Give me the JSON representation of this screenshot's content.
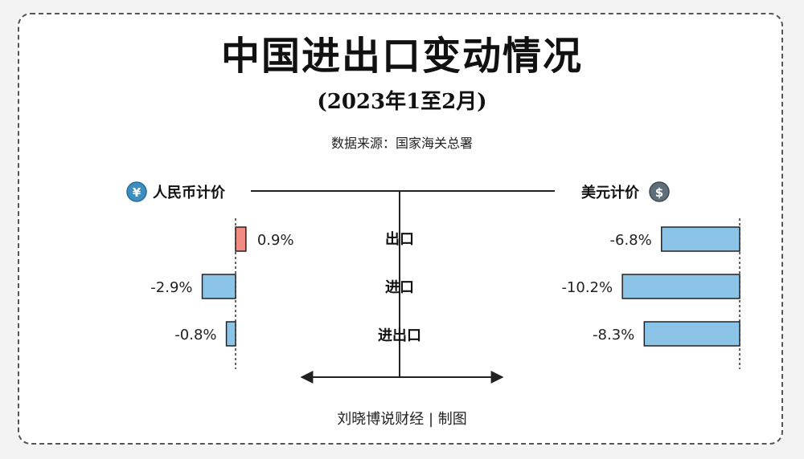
{
  "title": "中国进出口变动情况",
  "subtitle": "(2023年1至2月)",
  "source": "数据来源：国家海关总署",
  "credit": "刘晓博说财经 | 制图",
  "colors": {
    "positive": "#f28b82",
    "negative": "#8cc4e8",
    "stroke": "#222222",
    "icon_blue": "#3c8fc0",
    "icon_gray": "#5f6f7a"
  },
  "icons": {
    "left": "yuan-coin-icon",
    "right": "dollar-coin-icon"
  },
  "chart_data": {
    "type": "bar",
    "categories": [
      "出口",
      "进口",
      "进出口"
    ],
    "panels": [
      {
        "name": "人民币计价",
        "values": [
          0.9,
          -2.9,
          -0.8
        ],
        "labels": [
          "0.9%",
          "-2.9%",
          "-0.8%"
        ]
      },
      {
        "name": "美元计价",
        "values": [
          -6.8,
          -10.2,
          -8.3
        ],
        "labels": [
          "-6.8%",
          "-10.2%",
          "-8.3%"
        ]
      }
    ],
    "unit": "%"
  }
}
